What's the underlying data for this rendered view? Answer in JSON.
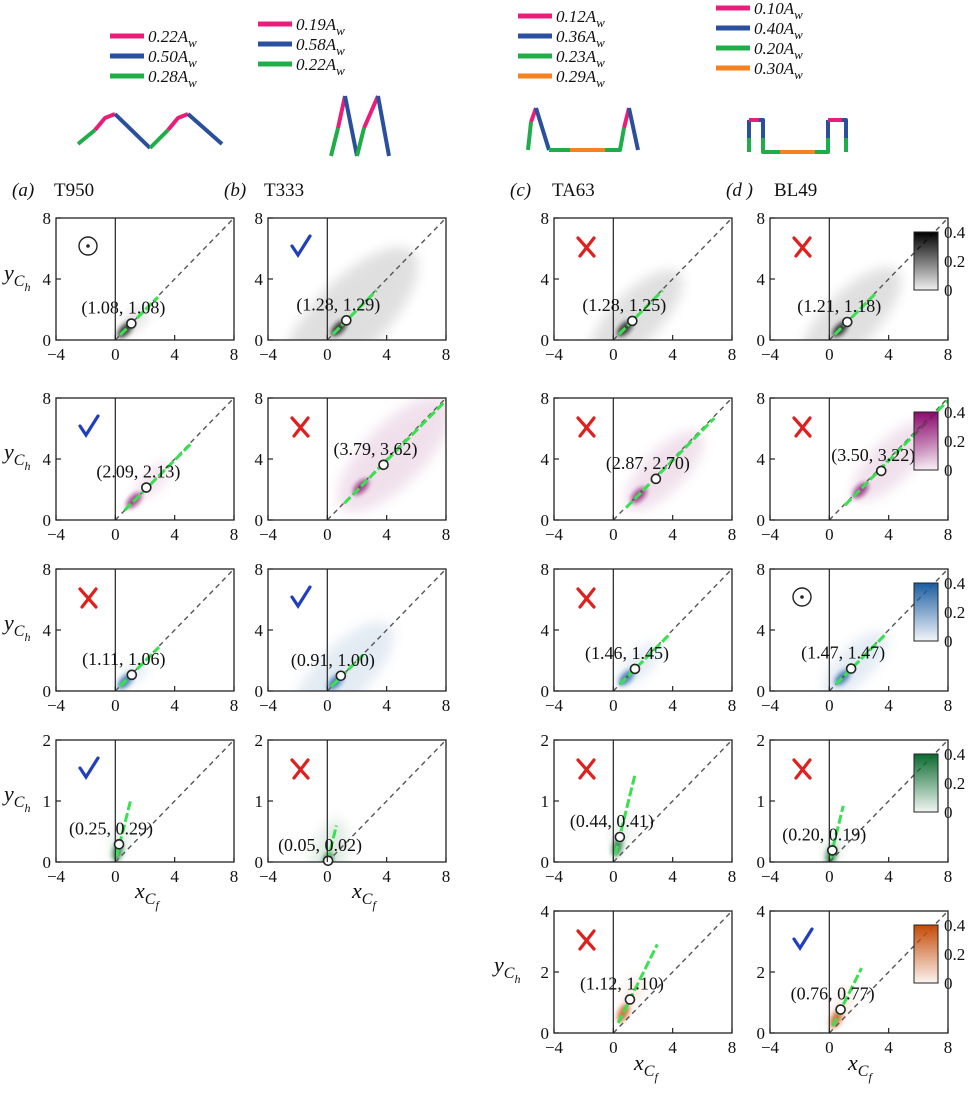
{
  "chart_data": {
    "type": "heatmap",
    "columns": [
      {
        "key": "a",
        "label_letter": "(a)",
        "label_name": "T950",
        "legend": [
          {
            "value": "0.22",
            "color": "#ea1e78"
          },
          {
            "value": "0.50",
            "color": "#2a4f9c"
          },
          {
            "value": "0.28",
            "color": "#1fad4a"
          }
        ],
        "symbol": "A",
        "symbol_sub": "w"
      },
      {
        "key": "b",
        "label_letter": "(b)",
        "label_name": "T333",
        "legend": [
          {
            "value": "0.19",
            "color": "#ea1e78"
          },
          {
            "value": "0.58",
            "color": "#2a4f9c"
          },
          {
            "value": "0.22",
            "color": "#1fad4a"
          }
        ],
        "symbol": "A",
        "symbol_sub": "w"
      },
      {
        "key": "c",
        "label_letter": "(c)",
        "label_name": "TA63",
        "legend": [
          {
            "value": "0.12",
            "color": "#ea1e78"
          },
          {
            "value": "0.36",
            "color": "#2a4f9c"
          },
          {
            "value": "0.23",
            "color": "#1fad4a"
          },
          {
            "value": "0.29",
            "color": "#f5821f"
          }
        ],
        "symbol": "A",
        "symbol_sub": "w"
      },
      {
        "key": "d",
        "label_letter": "(d )",
        "label_name": "BL49",
        "legend": [
          {
            "value": "0.10",
            "color": "#ea1e78"
          },
          {
            "value": "0.40",
            "color": "#2a4f9c"
          },
          {
            "value": "0.20",
            "color": "#1fad4a"
          },
          {
            "value": "0.30",
            "color": "#f5821f"
          }
        ],
        "symbol": "A",
        "symbol_sub": "w"
      }
    ],
    "rows": [
      {
        "key": "gray",
        "ylim": [
          0,
          8
        ],
        "yticks": [
          "0",
          "4",
          "8"
        ],
        "cmap": "#000000",
        "cb_ticks": [
          "0.4",
          "0.2",
          "0"
        ]
      },
      {
        "key": "pink",
        "ylim": [
          0,
          8
        ],
        "yticks": [
          "0",
          "4",
          "8"
        ],
        "cmap": "#8b0a6e",
        "cb_ticks": [
          "0.4",
          "0.2",
          "0"
        ]
      },
      {
        "key": "blue",
        "ylim": [
          0,
          8
        ],
        "yticks": [
          "0",
          "4",
          "8"
        ],
        "cmap": "#1b5ea0",
        "cb_ticks": [
          "0.4",
          "0.2",
          "0"
        ]
      },
      {
        "key": "green",
        "ylim": [
          0,
          2
        ],
        "yticks": [
          "0",
          "1",
          "2"
        ],
        "cmap": "#0a6b2e",
        "cb_ticks": [
          "0.4",
          "0.2",
          "0"
        ]
      },
      {
        "key": "orange",
        "ylim": [
          0,
          4
        ],
        "yticks": [
          "0",
          "2",
          "4"
        ],
        "cmap": "#c44a06",
        "cb_ticks": [
          "0.4",
          "0.2",
          "0"
        ]
      }
    ],
    "xlim": [
      -4,
      8
    ],
    "xticks": [
      "−4",
      "0",
      "4",
      "8"
    ],
    "xlabel": "x",
    "xlabel_sub": "C",
    "xlabel_subsub": "f",
    "ylabel": "y",
    "ylabel_sub": "C",
    "ylabel_subsub": "h",
    "panels": [
      {
        "row": 0,
        "col": 0,
        "mark": "dot",
        "label": "(1.08, 1.08)",
        "point": [
          1.08,
          1.08
        ],
        "spread": 0.2
      },
      {
        "row": 0,
        "col": 1,
        "mark": "check",
        "label": "(1.28, 1.29)",
        "point": [
          1.28,
          1.29
        ],
        "spread": 0.95
      },
      {
        "row": 0,
        "col": 2,
        "mark": "cross",
        "label": "(1.28, 1.25)",
        "point": [
          1.28,
          1.25
        ],
        "spread": 0.65
      },
      {
        "row": 0,
        "col": 3,
        "mark": "cross",
        "label": "(1.21, 1.18)",
        "point": [
          1.21,
          1.18
        ],
        "spread": 0.7
      },
      {
        "row": 1,
        "col": 0,
        "mark": "check",
        "label": "(2.09, 2.13)",
        "point": [
          2.09,
          2.13
        ],
        "spread": 0.25
      },
      {
        "row": 1,
        "col": 1,
        "mark": "cross",
        "label": "(3.79, 3.62)",
        "point": [
          3.79,
          3.62
        ],
        "spread": 0.8
      },
      {
        "row": 1,
        "col": 2,
        "mark": "cross",
        "label": "(2.87, 2.70)",
        "point": [
          2.87,
          2.7
        ],
        "spread": 0.55
      },
      {
        "row": 1,
        "col": 3,
        "mark": "cross",
        "label": "(3.50, 3.22)",
        "point": [
          3.5,
          3.22
        ],
        "spread": 0.55
      },
      {
        "row": 2,
        "col": 0,
        "mark": "cross",
        "label": "(1.11, 1.06)",
        "point": [
          1.11,
          1.06
        ],
        "spread": 0.18
      },
      {
        "row": 2,
        "col": 1,
        "mark": "check",
        "label": "(0.91, 1.00)",
        "point": [
          0.91,
          1.0
        ],
        "spread": 0.7
      },
      {
        "row": 2,
        "col": 2,
        "mark": "cross",
        "label": "(1.46, 1.45)",
        "point": [
          1.46,
          1.45
        ],
        "spread": 0.3
      },
      {
        "row": 2,
        "col": 3,
        "mark": "dot",
        "label": "(1.47, 1.47)",
        "point": [
          1.47,
          1.47
        ],
        "spread": 0.45
      },
      {
        "row": 3,
        "col": 0,
        "mark": "check",
        "label": "(0.25, 0.29)",
        "point": [
          0.25,
          0.29
        ],
        "spread": 0.15
      },
      {
        "row": 3,
        "col": 1,
        "mark": "cross",
        "label": "(0.05, 0.02)",
        "point": [
          0.05,
          0.02
        ],
        "spread": 0.45
      },
      {
        "row": 3,
        "col": 2,
        "mark": "cross",
        "label": "(0.44, 0.41)",
        "point": [
          0.44,
          0.41
        ],
        "spread": 0.15
      },
      {
        "row": 3,
        "col": 3,
        "mark": "cross",
        "label": "(0.20, 0.19)",
        "point": [
          0.2,
          0.19
        ],
        "spread": 0.15
      },
      {
        "row": 4,
        "col": 2,
        "mark": "cross",
        "label": "(1.12, 1.10)",
        "point": [
          1.12,
          1.1
        ],
        "spread": 0.18
      },
      {
        "row": 4,
        "col": 3,
        "mark": "check",
        "label": "(0.76, 0.77)",
        "point": [
          0.76,
          0.77
        ],
        "spread": 0.18
      }
    ],
    "colors": {
      "check": "#1f3fbf",
      "cross": "#e0201e",
      "ridge": "#39e04f"
    }
  }
}
